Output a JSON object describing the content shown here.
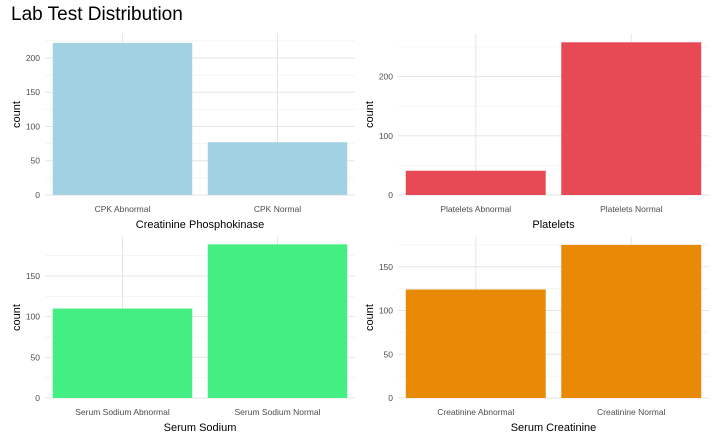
{
  "title": "Lab Test Distribution",
  "chart_data": [
    {
      "type": "bar",
      "xlabel": "Creatinine Phosphokinase",
      "ylabel": "count",
      "categories": [
        "CPK Abnormal",
        "CPK Normal"
      ],
      "values": [
        222,
        77
      ],
      "ylim": [
        0,
        235
      ],
      "yticks": [
        0,
        50,
        100,
        150,
        200
      ],
      "color": "#a1d1e2",
      "grid": true
    },
    {
      "type": "bar",
      "xlabel": "Platelets",
      "ylabel": "count",
      "categories": [
        "Platelets Abnormal",
        "Platelets Normal"
      ],
      "values": [
        41,
        258
      ],
      "ylim": [
        0,
        272
      ],
      "yticks": [
        0,
        100,
        200
      ],
      "color": "#e84a55",
      "grid": true
    },
    {
      "type": "bar",
      "xlabel": "Serum Sodium",
      "ylabel": "count",
      "categories": [
        "Serum Sodium Abnormal",
        "Serum Sodium Normal"
      ],
      "values": [
        110,
        189
      ],
      "ylim": [
        0,
        198
      ],
      "yticks": [
        0,
        50,
        100,
        150
      ],
      "color": "#44ee83",
      "grid": true
    },
    {
      "type": "bar",
      "xlabel": "Serum Creatinine",
      "ylabel": "count",
      "categories": [
        "Creatinine Abnormal",
        "Creatinine Normal"
      ],
      "values": [
        124,
        175
      ],
      "ylim": [
        0,
        184
      ],
      "yticks": [
        0,
        50,
        100,
        150
      ],
      "color": "#e88a05",
      "grid": true
    }
  ]
}
